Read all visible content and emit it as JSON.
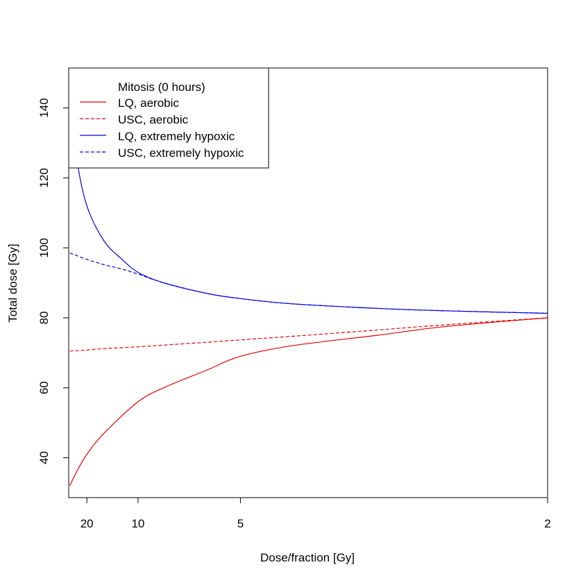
{
  "chart_data": {
    "type": "line",
    "title": "",
    "xlabel": "Dose/fraction [Gy]",
    "ylabel": "Total dose [Gy]",
    "x_scale": "reciprocal",
    "xlim": [
      31,
      2
    ],
    "ylim": [
      28.6,
      151.4
    ],
    "x_ticks": [
      20,
      10,
      5,
      2
    ],
    "y_ticks": [
      40,
      60,
      80,
      100,
      120,
      140
    ],
    "grid": false,
    "legend": {
      "placement": "top-left",
      "title": "Mitosis (0 hours)"
    },
    "series": [
      {
        "name": "LQ, aerobic",
        "color": "#e00000",
        "dash": "solid",
        "x": [
          30,
          25,
          20,
          15,
          10,
          8,
          6,
          5,
          4,
          3,
          2.5,
          2
        ],
        "y": [
          32,
          36,
          41,
          47,
          56,
          60,
          65,
          69,
          72,
          75,
          77.5,
          80
        ]
      },
      {
        "name": "USC, aerobic",
        "color": "#e00000",
        "dash": "dashed",
        "x": [
          30,
          25,
          20,
          15,
          10,
          8,
          6,
          5,
          4,
          3,
          2.5,
          2
        ],
        "y": [
          70.5,
          70.6,
          70.8,
          71.2,
          71.7,
          72.2,
          73.0,
          73.7,
          74.7,
          76.5,
          78,
          80
        ]
      },
      {
        "name": "LQ, extremely hypoxic",
        "color": "#0000dd",
        "dash": "solid",
        "x": [
          30,
          25,
          20,
          15,
          12,
          10,
          8,
          6,
          5,
          4,
          3,
          2.5,
          2
        ],
        "y": [
          148,
          126,
          112,
          102,
          97,
          93,
          90,
          87,
          85.5,
          84,
          82.7,
          82,
          81.3
        ]
      },
      {
        "name": "USC, extremely hypoxic",
        "color": "#0000dd",
        "dash": "dashed",
        "x": [
          30,
          25,
          20,
          15,
          12,
          10,
          8,
          6,
          5,
          4,
          3,
          2.5,
          2
        ],
        "y": [
          98.5,
          97.8,
          96.7,
          95.2,
          94,
          92.5,
          90,
          87,
          85.5,
          84,
          82.7,
          82,
          81.3
        ]
      }
    ]
  }
}
